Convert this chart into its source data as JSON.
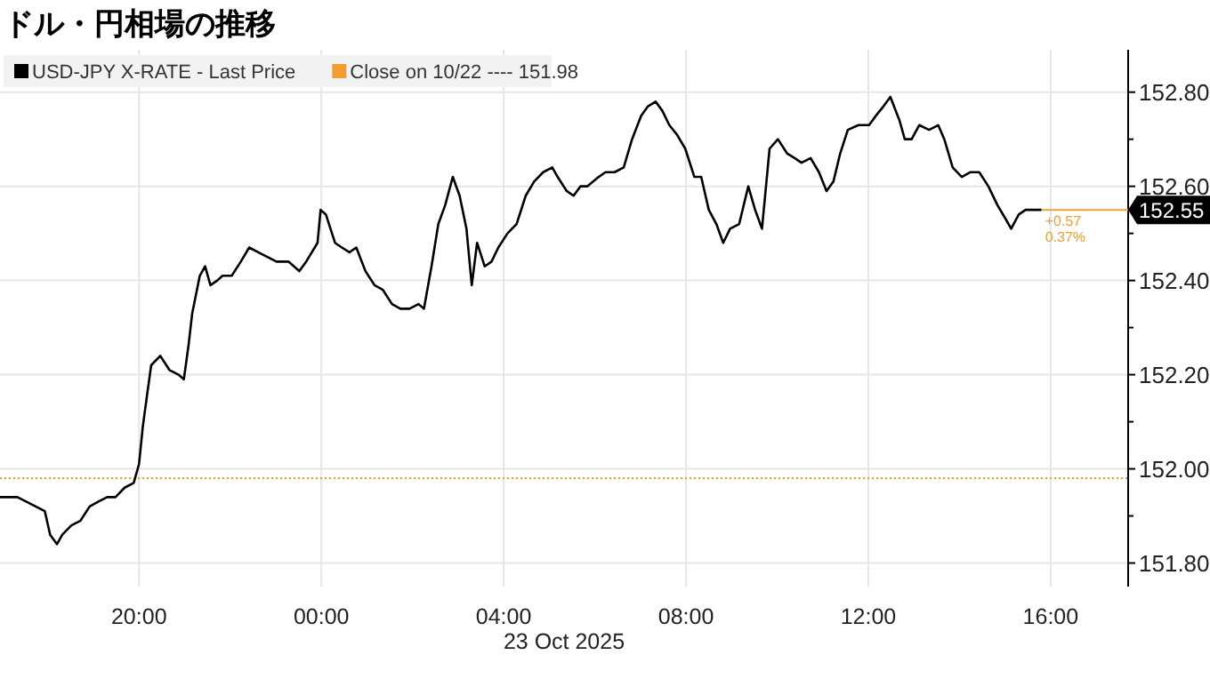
{
  "chart_data": {
    "type": "line",
    "title": "ドル・円相場の推移",
    "xlabel": "23 Oct 2025",
    "xlim": [
      "2025-10-22T16:57",
      "2025-10-23T17:42"
    ],
    "ylim": [
      151.75,
      152.89
    ],
    "xticks": [
      {
        "value": "2025-10-22T20:00",
        "label": "20:00"
      },
      {
        "value": "2025-10-23T00:00",
        "label": "00:00"
      },
      {
        "value": "2025-10-23T04:00",
        "label": "04:00"
      },
      {
        "value": "2025-10-23T08:00",
        "label": "08:00"
      },
      {
        "value": "2025-10-23T12:00",
        "label": "12:00"
      },
      {
        "value": "2025-10-23T16:00",
        "label": "16:00"
      }
    ],
    "yticks": [
      {
        "value": 151.8,
        "label": "151.80"
      },
      {
        "value": 151.9,
        "label": null
      },
      {
        "value": 152.0,
        "label": "152.00"
      },
      {
        "value": 152.1,
        "label": null
      },
      {
        "value": 152.2,
        "label": "152.20"
      },
      {
        "value": 152.3,
        "label": null
      },
      {
        "value": 152.4,
        "label": "152.40"
      },
      {
        "value": 152.5,
        "label": null
      },
      {
        "value": 152.6,
        "label": "152.60"
      },
      {
        "value": 152.7,
        "label": null
      },
      {
        "value": 152.8,
        "label": "152.80"
      }
    ],
    "grid": true,
    "legend": "top left",
    "series": [
      {
        "name": "USD-JPY X-RATE - Last Price",
        "color": "#000000",
        "x": [
          "2025-10-22T16:57",
          "2025-10-22T17:20",
          "2025-10-22T17:44",
          "2025-10-22T17:56",
          "2025-10-22T18:03",
          "2025-10-22T18:12",
          "2025-10-22T18:19",
          "2025-10-22T18:31",
          "2025-10-22T18:43",
          "2025-10-22T18:55",
          "2025-10-22T19:06",
          "2025-10-22T19:18",
          "2025-10-22T19:29",
          "2025-10-22T19:41",
          "2025-10-22T19:53",
          "2025-10-22T20:00",
          "2025-10-22T20:05",
          "2025-10-22T20:10",
          "2025-10-22T20:16",
          "2025-10-22T20:28",
          "2025-10-22T20:40",
          "2025-10-22T20:52",
          "2025-10-22T20:59",
          "2025-10-22T21:05",
          "2025-10-22T21:10",
          "2025-10-22T21:20",
          "2025-10-22T21:27",
          "2025-10-22T21:34",
          "2025-10-22T21:43",
          "2025-10-22T21:50",
          "2025-10-22T22:02",
          "2025-10-22T22:14",
          "2025-10-22T22:25",
          "2025-10-22T22:37",
          "2025-10-22T22:49",
          "2025-10-22T23:01",
          "2025-10-22T23:17",
          "2025-10-22T23:31",
          "2025-10-22T23:40",
          "2025-10-22T23:55",
          "2025-10-22T23:59",
          "2025-10-23T00:06",
          "2025-10-23T00:18",
          "2025-10-23T00:27",
          "2025-10-23T00:37",
          "2025-10-23T00:46",
          "2025-10-23T00:58",
          "2025-10-23T01:10",
          "2025-10-23T01:21",
          "2025-10-23T01:33",
          "2025-10-23T01:44",
          "2025-10-23T01:56",
          "2025-10-23T02:08",
          "2025-10-23T02:15",
          "2025-10-23T02:25",
          "2025-10-23T02:34",
          "2025-10-23T02:43",
          "2025-10-23T02:53",
          "2025-10-23T03:02",
          "2025-10-23T03:11",
          "2025-10-23T03:18",
          "2025-10-23T03:25",
          "2025-10-23T03:35",
          "2025-10-23T03:44",
          "2025-10-23T03:53",
          "2025-10-23T04:05",
          "2025-10-23T04:17",
          "2025-10-23T04:29",
          "2025-10-23T04:40",
          "2025-10-23T04:52",
          "2025-10-23T05:04",
          "2025-10-23T05:11",
          "2025-10-23T05:23",
          "2025-10-23T05:32",
          "2025-10-23T05:41",
          "2025-10-23T05:50",
          "2025-10-23T06:05",
          "2025-10-23T06:14",
          "2025-10-23T06:26",
          "2025-10-23T06:38",
          "2025-10-23T06:49",
          "2025-10-23T07:01",
          "2025-10-23T07:10",
          "2025-10-23T07:20",
          "2025-10-23T07:29",
          "2025-10-23T07:38",
          "2025-10-23T07:48",
          "2025-10-23T07:59",
          "2025-10-23T08:11",
          "2025-10-23T08:20",
          "2025-10-23T08:30",
          "2025-10-23T08:40",
          "2025-10-23T08:49",
          "2025-10-23T08:58",
          "2025-10-23T09:10",
          "2025-10-23T09:22",
          "2025-10-23T09:31",
          "2025-10-23T09:40",
          "2025-10-23T09:50",
          "2025-10-23T10:01",
          "2025-10-23T10:13",
          "2025-10-23T10:23",
          "2025-10-23T10:32",
          "2025-10-23T10:44",
          "2025-10-23T10:55",
          "2025-10-23T11:05",
          "2025-10-23T11:14",
          "2025-10-23T11:23",
          "2025-10-23T11:33",
          "2025-10-23T11:47",
          "2025-10-23T12:01",
          "2025-10-23T12:10",
          "2025-10-23T12:20",
          "2025-10-23T12:29",
          "2025-10-23T12:41",
          "2025-10-23T12:48",
          "2025-10-23T12:57",
          "2025-10-23T13:07",
          "2025-10-23T13:20",
          "2025-10-23T13:32",
          "2025-10-23T13:40",
          "2025-10-23T13:51",
          "2025-10-23T14:03",
          "2025-10-23T14:14",
          "2025-10-23T14:26",
          "2025-10-23T14:38",
          "2025-10-23T14:50",
          "2025-10-23T15:01",
          "2025-10-23T15:08",
          "2025-10-23T15:18",
          "2025-10-23T15:27",
          "2025-10-23T15:37",
          "2025-10-23T15:48"
        ],
        "values": [
          151.94,
          151.94,
          151.92,
          151.91,
          151.86,
          151.84,
          151.86,
          151.88,
          151.89,
          151.92,
          151.93,
          151.94,
          151.94,
          151.96,
          151.97,
          152.01,
          152.09,
          152.15,
          152.22,
          152.24,
          152.21,
          152.2,
          152.19,
          152.26,
          152.33,
          152.41,
          152.43,
          152.39,
          152.4,
          152.41,
          152.41,
          152.44,
          152.47,
          152.46,
          152.45,
          152.44,
          152.44,
          152.42,
          152.44,
          152.48,
          152.55,
          152.54,
          152.48,
          152.47,
          152.46,
          152.47,
          152.42,
          152.39,
          152.38,
          152.35,
          152.34,
          152.34,
          152.35,
          152.34,
          152.43,
          152.52,
          152.56,
          152.62,
          152.58,
          152.51,
          152.39,
          152.48,
          152.43,
          152.44,
          152.47,
          152.5,
          152.52,
          152.58,
          152.61,
          152.63,
          152.64,
          152.62,
          152.59,
          152.58,
          152.6,
          152.6,
          152.62,
          152.63,
          152.63,
          152.64,
          152.7,
          152.75,
          152.77,
          152.78,
          152.76,
          152.73,
          152.71,
          152.68,
          152.62,
          152.62,
          152.55,
          152.52,
          152.48,
          152.51,
          152.52,
          152.6,
          152.55,
          152.51,
          152.68,
          152.7,
          152.67,
          152.66,
          152.65,
          152.66,
          152.63,
          152.59,
          152.61,
          152.67,
          152.72,
          152.73,
          152.73,
          152.75,
          152.77,
          152.79,
          152.74,
          152.7,
          152.7,
          152.73,
          152.72,
          152.73,
          152.7,
          152.64,
          152.62,
          152.63,
          152.63,
          152.6,
          152.56,
          152.53,
          152.51,
          152.54,
          152.55,
          152.55,
          152.55
        ]
      }
    ],
    "ref_lines": [
      {
        "axis": "y",
        "value": 151.98,
        "label": "Close on 10/22 ---- 151.98",
        "color": "#f0a030",
        "line_style": "dotted"
      }
    ],
    "annotations": [
      {
        "text": "152.55",
        "x": "2025-10-23T15:48",
        "y": 152.55
      },
      "+0.57",
      "0.37%"
    ]
  }
}
